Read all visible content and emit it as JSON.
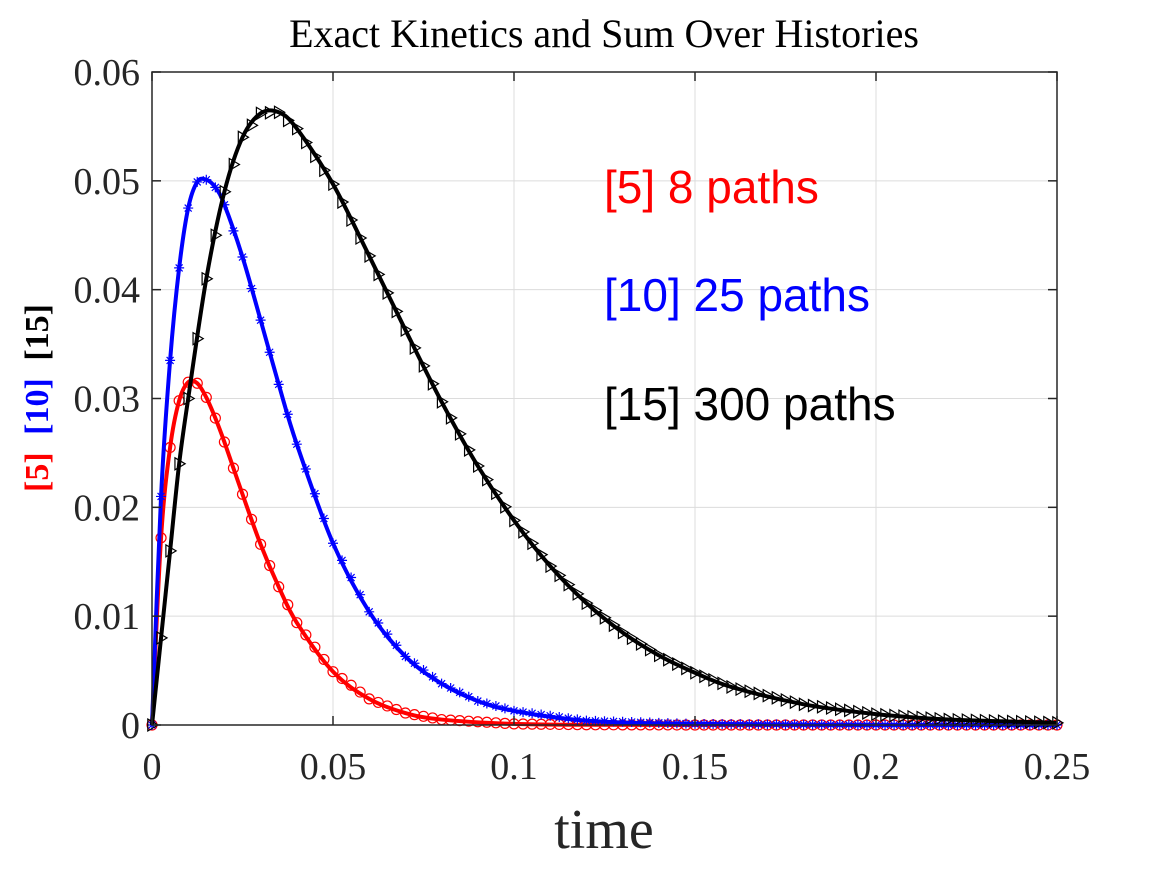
{
  "chart_data": {
    "type": "line",
    "title": "Exact Kinetics and Sum Over Histories",
    "xlabel": "time",
    "ylabel_parts": [
      {
        "text": "[5]",
        "color": "#ff0000"
      },
      {
        "text": "[10]",
        "color": "#0000ff"
      },
      {
        "text": "[15]",
        "color": "#000000"
      }
    ],
    "xlim": [
      0,
      0.25
    ],
    "ylim": [
      0,
      0.06
    ],
    "xticks": [
      0,
      0.05,
      0.1,
      0.15,
      0.2,
      0.25
    ],
    "xtick_labels": [
      "0",
      "0.05",
      "0.1",
      "0.15",
      "0.2",
      "0.25"
    ],
    "yticks": [
      0,
      0.01,
      0.02,
      0.03,
      0.04,
      0.05,
      0.06
    ],
    "ytick_labels": [
      "0",
      "0.01",
      "0.02",
      "0.03",
      "0.04",
      "0.05",
      "0.06"
    ],
    "grid": true,
    "annotations": [
      {
        "text": "[5] 8 paths",
        "color": "#ff0000"
      },
      {
        "text": "[10] 25 paths",
        "color": "#0000ff"
      },
      {
        "text": "[15] 300 paths",
        "color": "#000000"
      }
    ],
    "series": [
      {
        "line_color": "#ff0000",
        "marker": "circle",
        "x": [
          0,
          0.0025,
          0.005,
          0.0075,
          0.01,
          0.0125,
          0.015,
          0.0175,
          0.02,
          0.025,
          0.03,
          0.035,
          0.04,
          0.05,
          0.06,
          0.07,
          0.08,
          0.1,
          0.12,
          0.15,
          0.2,
          0.25
        ],
        "y": [
          0,
          0.0172,
          0.0255,
          0.0298,
          0.0315,
          0.0314,
          0.0301,
          0.0282,
          0.026,
          0.0212,
          0.0166,
          0.0127,
          0.0094,
          0.0049,
          0.0024,
          0.0011,
          0.0005,
          0.0001,
          2e-05,
          0,
          0,
          0
        ]
      },
      {
        "line_color": "#0000ff",
        "marker": "asterisk",
        "x": [
          0,
          0.0025,
          0.005,
          0.0075,
          0.01,
          0.0125,
          0.015,
          0.0175,
          0.02,
          0.025,
          0.03,
          0.035,
          0.04,
          0.05,
          0.06,
          0.07,
          0.08,
          0.09,
          0.1,
          0.12,
          0.15,
          0.2,
          0.25
        ],
        "y": [
          0,
          0.021,
          0.0335,
          0.042,
          0.0475,
          0.0499,
          0.0501,
          0.0494,
          0.0478,
          0.043,
          0.0372,
          0.0313,
          0.0258,
          0.0167,
          0.0104,
          0.0063,
          0.0038,
          0.0022,
          0.0013,
          0.0004,
          0.0001,
          0,
          0
        ]
      },
      {
        "line_color": "#000000",
        "marker": "triangle-right",
        "x": [
          0,
          0.0025,
          0.005,
          0.0075,
          0.01,
          0.015,
          0.02,
          0.025,
          0.03,
          0.035,
          0.04,
          0.05,
          0.06,
          0.07,
          0.08,
          0.09,
          0.1,
          0.11,
          0.12,
          0.13,
          0.14,
          0.15,
          0.16,
          0.18,
          0.2,
          0.22,
          0.25
        ],
        "y": [
          0,
          0.008,
          0.016,
          0.024,
          0.03,
          0.041,
          0.049,
          0.054,
          0.0562,
          0.0563,
          0.0548,
          0.0497,
          0.0431,
          0.0363,
          0.0297,
          0.0238,
          0.0188,
          0.0146,
          0.0112,
          0.0085,
          0.0064,
          0.0048,
          0.0035,
          0.0019,
          0.001,
          0.0005,
          0.0002
        ]
      }
    ]
  }
}
